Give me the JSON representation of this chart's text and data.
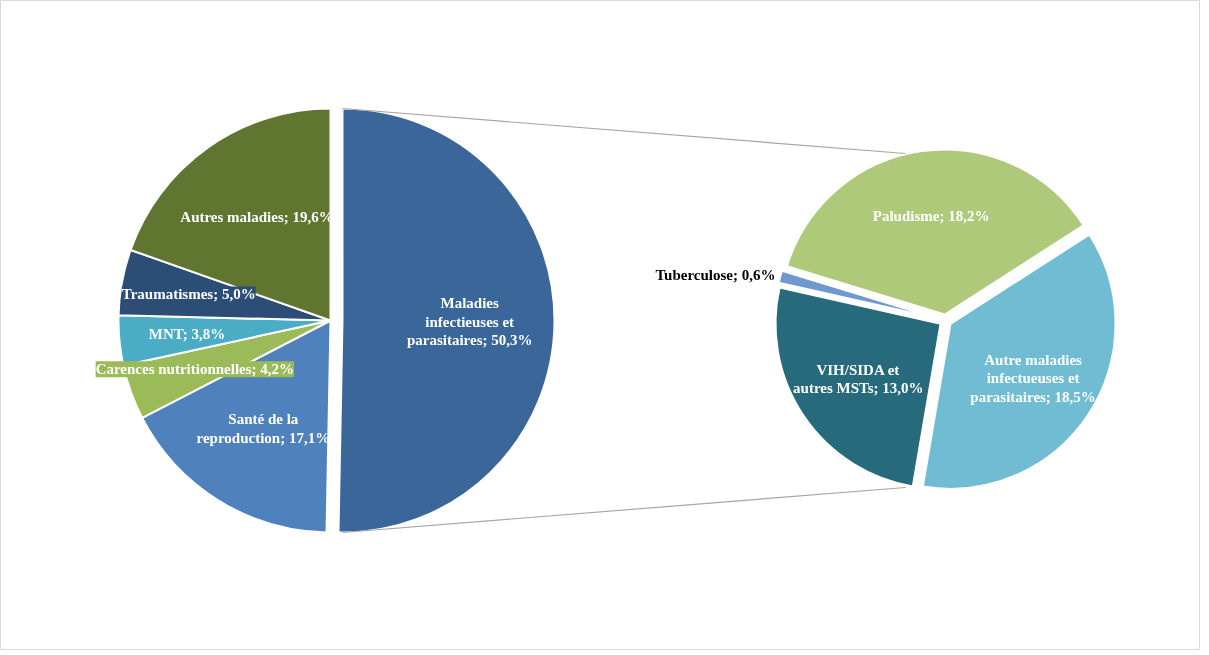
{
  "chart_data": [
    {
      "type": "pie",
      "categories": [
        "Maladies infectieuses et parasitaires",
        "Santé de la reproduction",
        "Carences nutritionnelles",
        "MNT",
        "Traumatismes",
        "Autres maladies"
      ],
      "values": [
        50.3,
        17.1,
        4.2,
        3.8,
        5.0,
        19.6
      ],
      "value_labels": [
        "50,3%",
        "17,1%",
        "4,2%",
        "3,8%",
        "5,0%",
        "19,6%"
      ],
      "colors": [
        "#3a6699",
        "#4f81bd",
        "#9bbb59",
        "#4bacc6",
        "#2c4d75",
        "#5f7530"
      ]
    },
    {
      "type": "pie",
      "categories": [
        "Paludisme",
        "Autre maladies infectueuses et parasitaires",
        "VIH/SIDA et autres MSTs",
        "Tuberculose"
      ],
      "values": [
        18.2,
        18.5,
        13.0,
        0.6
      ],
      "value_labels": [
        "18,2%",
        "18,5%",
        "13,0%",
        "0,6%"
      ],
      "colors": [
        "#afc97a",
        "#70bcd2",
        "#276a7c",
        "#6f98cf"
      ]
    }
  ]
}
